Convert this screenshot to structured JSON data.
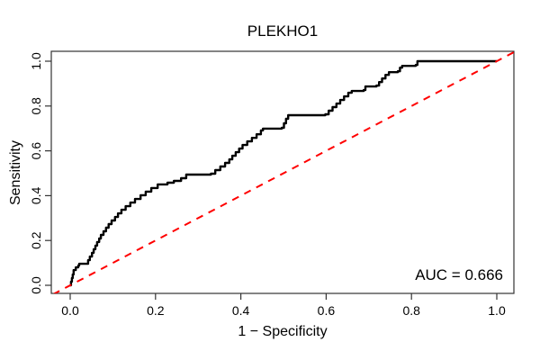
{
  "figure": {
    "title": "PLEKHO1",
    "x_axis_label": "1 − Specificity",
    "y_axis_label": "Sensitivity",
    "auc_label": "AUC = 0.666",
    "colors": {
      "curve": "#000000",
      "diagonal": "#ff0000",
      "frame": "#333333",
      "text": "#000000",
      "background": "#ffffff"
    }
  },
  "chart_data": {
    "type": "line",
    "subtype": "roc_curve",
    "title": "PLEKHO1",
    "xlabel": "1 − Specificity",
    "ylabel": "Sensitivity",
    "xlim": [
      -0.04,
      1.04
    ],
    "ylim": [
      -0.04,
      1.04
    ],
    "x_ticks": [
      0,
      0.2,
      0.4,
      0.6,
      0.8,
      1.0
    ],
    "y_ticks": [
      0,
      0.2,
      0.4,
      0.6,
      0.8,
      1.0
    ],
    "grid": false,
    "legend": null,
    "auc": 0.666,
    "annotations": [
      {
        "text": "AUC = 0.666",
        "x": 0.965,
        "y": 0.05,
        "align": "right"
      }
    ],
    "series": [
      {
        "name": "roc-curve",
        "style": "step",
        "color": "#000000",
        "line_width": 2.4,
        "points": [
          [
            0.0,
            0.0
          ],
          [
            0.002,
            0.016
          ],
          [
            0.004,
            0.032
          ],
          [
            0.006,
            0.048
          ],
          [
            0.008,
            0.068
          ],
          [
            0.013,
            0.08
          ],
          [
            0.019,
            0.088
          ],
          [
            0.021,
            0.096
          ],
          [
            0.04,
            0.096
          ],
          [
            0.042,
            0.112
          ],
          [
            0.046,
            0.128
          ],
          [
            0.051,
            0.145
          ],
          [
            0.055,
            0.161
          ],
          [
            0.059,
            0.177
          ],
          [
            0.063,
            0.193
          ],
          [
            0.068,
            0.209
          ],
          [
            0.072,
            0.225
          ],
          [
            0.078,
            0.241
          ],
          [
            0.084,
            0.257
          ],
          [
            0.09,
            0.273
          ],
          [
            0.097,
            0.289
          ],
          [
            0.105,
            0.305
          ],
          [
            0.112,
            0.321
          ],
          [
            0.12,
            0.337
          ],
          [
            0.13,
            0.353
          ],
          [
            0.141,
            0.369
          ],
          [
            0.152,
            0.385
          ],
          [
            0.165,
            0.402
          ],
          [
            0.177,
            0.418
          ],
          [
            0.19,
            0.434
          ],
          [
            0.205,
            0.45
          ],
          [
            0.228,
            0.458
          ],
          [
            0.243,
            0.466
          ],
          [
            0.26,
            0.478
          ],
          [
            0.272,
            0.494
          ],
          [
            0.33,
            0.498
          ],
          [
            0.34,
            0.514
          ],
          [
            0.352,
            0.53
          ],
          [
            0.363,
            0.546
          ],
          [
            0.373,
            0.562
          ],
          [
            0.38,
            0.578
          ],
          [
            0.388,
            0.594
          ],
          [
            0.396,
            0.61
          ],
          [
            0.404,
            0.626
          ],
          [
            0.415,
            0.642
          ],
          [
            0.426,
            0.658
          ],
          [
            0.437,
            0.674
          ],
          [
            0.447,
            0.691
          ],
          [
            0.452,
            0.699
          ],
          [
            0.496,
            0.703
          ],
          [
            0.501,
            0.723
          ],
          [
            0.506,
            0.743
          ],
          [
            0.511,
            0.759
          ],
          [
            0.598,
            0.763
          ],
          [
            0.606,
            0.779
          ],
          [
            0.615,
            0.795
          ],
          [
            0.624,
            0.811
          ],
          [
            0.633,
            0.827
          ],
          [
            0.642,
            0.843
          ],
          [
            0.652,
            0.859
          ],
          [
            0.66,
            0.867
          ],
          [
            0.688,
            0.871
          ],
          [
            0.692,
            0.887
          ],
          [
            0.718,
            0.891
          ],
          [
            0.724,
            0.907
          ],
          [
            0.731,
            0.923
          ],
          [
            0.739,
            0.939
          ],
          [
            0.747,
            0.951
          ],
          [
            0.768,
            0.955
          ],
          [
            0.773,
            0.971
          ],
          [
            0.778,
            0.979
          ],
          [
            0.81,
            0.983
          ],
          [
            0.814,
            1.0
          ],
          [
            1.0,
            1.0
          ]
        ]
      },
      {
        "name": "chance-diagonal",
        "style": "dashed",
        "color": "#ff0000",
        "line_width": 2,
        "dash": [
          8,
          7
        ],
        "abline": {
          "intercept": 0,
          "slope": 1
        },
        "points": [
          [
            0,
            0
          ],
          [
            1,
            1
          ]
        ]
      }
    ]
  }
}
